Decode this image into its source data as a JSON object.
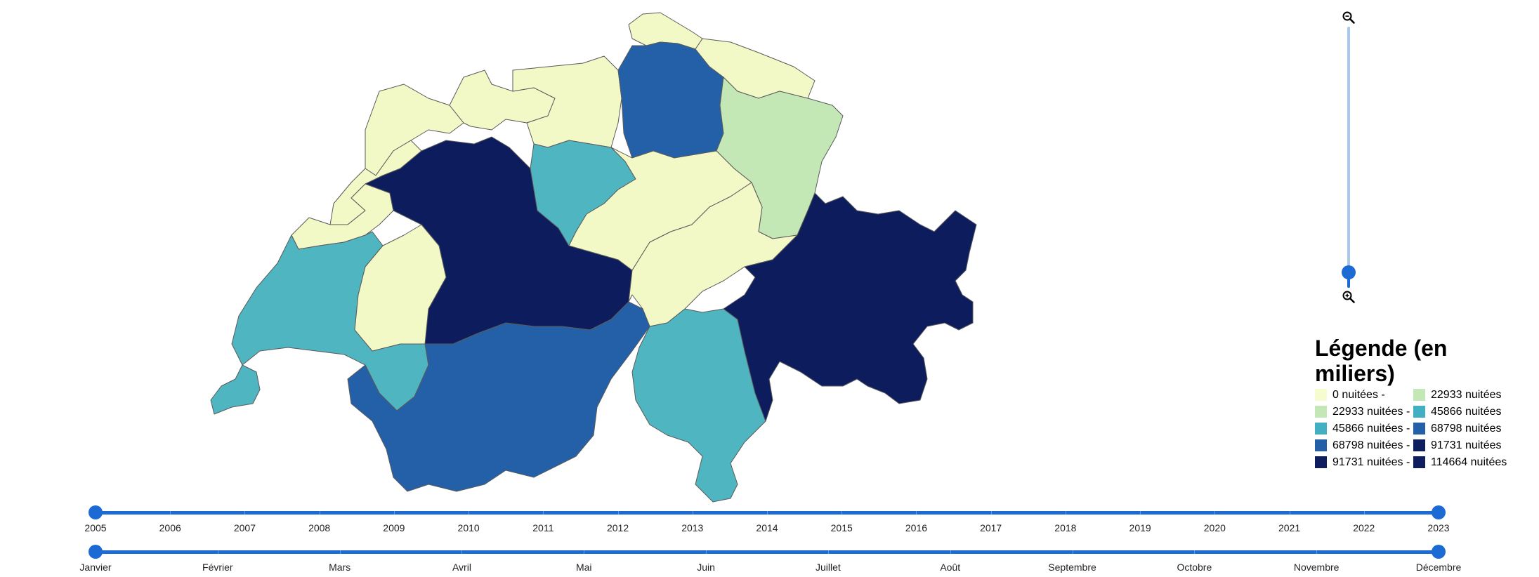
{
  "map": {
    "cantons": [
      {
        "id": "northwest",
        "value_class": 0
      },
      {
        "id": "basel",
        "value_class": 0
      },
      {
        "id": "aargau",
        "value_class": 0
      },
      {
        "id": "schaffhausen",
        "value_class": 0
      },
      {
        "id": "thurgau",
        "value_class": 0
      },
      {
        "id": "zurich",
        "value_class": 3
      },
      {
        "id": "st-gallen",
        "value_class": 1
      },
      {
        "id": "jura",
        "value_class": 0
      },
      {
        "id": "neuchatel",
        "value_class": 0
      },
      {
        "id": "bern",
        "value_class": 4
      },
      {
        "id": "lucerne",
        "value_class": 2
      },
      {
        "id": "central",
        "value_class": 0
      },
      {
        "id": "uri-glarus",
        "value_class": 0
      },
      {
        "id": "vaud",
        "value_class": 2
      },
      {
        "id": "fribourg",
        "value_class": 0
      },
      {
        "id": "geneva",
        "value_class": 2
      },
      {
        "id": "valais",
        "value_class": 3
      },
      {
        "id": "ticino",
        "value_class": 2
      },
      {
        "id": "graubunden",
        "value_class": 4
      }
    ],
    "colors": [
      "#f2f9c6",
      "#c4e8b5",
      "#4fb5c0",
      "#2460a7",
      "#0d1c5c"
    ]
  },
  "zoom": {
    "min_icon": "zoom-out-icon",
    "max_icon": "zoom-in-icon",
    "level": 0.06
  },
  "legend": {
    "title": "Légende (en miliers)",
    "items": [
      {
        "label": "0 nuitées -",
        "color": "#f7fcd0"
      },
      {
        "label": "22933 nuitées",
        "color": "#c4e8b5"
      },
      {
        "label": "22933 nuitées -",
        "color": "#c4e8b5"
      },
      {
        "label": "45866 nuitées",
        "color": "#42b0c2"
      },
      {
        "label": "45866 nuitées -",
        "color": "#42b0c2"
      },
      {
        "label": "68798 nuitées",
        "color": "#2460a7"
      },
      {
        "label": "68798 nuitées -",
        "color": "#2460a7"
      },
      {
        "label": "91731 nuitées",
        "color": "#0e1d5e"
      },
      {
        "label": "91731 nuitées -",
        "color": "#0e1d5e"
      },
      {
        "label": "114664 nuitées",
        "color": "#0e1d5e"
      }
    ]
  },
  "year_slider": {
    "labels": [
      "2005",
      "2006",
      "2007",
      "2008",
      "2009",
      "2010",
      "2011",
      "2012",
      "2013",
      "2014",
      "2015",
      "2016",
      "2017",
      "2018",
      "2019",
      "2020",
      "2021",
      "2022",
      "2023"
    ],
    "start": "2005",
    "end": "2023"
  },
  "month_slider": {
    "labels": [
      "Janvier",
      "Février",
      "Mars",
      "Avril",
      "Mai",
      "Juin",
      "Juillet",
      "Août",
      "Septembre",
      "Octobre",
      "Novembre",
      "Décembre"
    ],
    "start": "Janvier",
    "end": "Décembre"
  }
}
